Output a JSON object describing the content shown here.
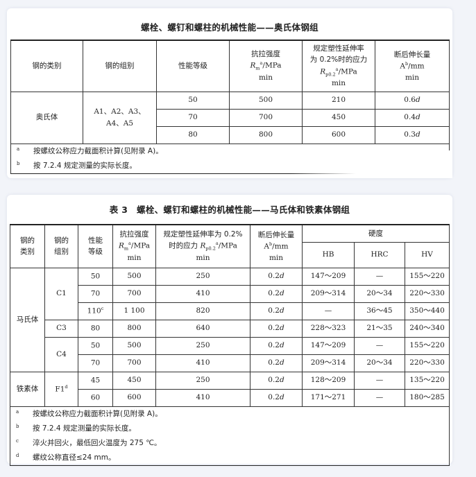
{
  "table1": {
    "title": "螺栓、螺钉和螺柱的机械性能——奥氏体钢组",
    "headers": {
      "category": "钢的类别",
      "group": "钢的组别",
      "grade": "性能等级",
      "tensile": [
        "抗拉强度",
        "R",
        "m",
        "a",
        "/MPa",
        "min"
      ],
      "yield": [
        "规定塑性延伸率",
        "为 0.2%时的应力",
        "R",
        "p0.2",
        "a",
        "/MPa",
        "min"
      ],
      "elong": [
        "断后伸长量",
        "A",
        "b",
        "/mm",
        "min"
      ]
    },
    "category": "奥氏体",
    "group": [
      "A1、A2、A3、",
      "A4、A5"
    ],
    "rows": [
      {
        "grade": "50",
        "tensile": "500",
        "yield": "210",
        "elong": "0.6",
        "unit": "d"
      },
      {
        "grade": "70",
        "tensile": "700",
        "yield": "450",
        "elong": "0.4",
        "unit": "d"
      },
      {
        "grade": "80",
        "tensile": "800",
        "yield": "600",
        "elong": "0.3",
        "unit": "d"
      }
    ],
    "notes": [
      {
        "mark": "a",
        "text": "按螺纹公称应力截面积计算(见附录 A)。"
      },
      {
        "mark": "b",
        "text": "按 7.2.4 规定测量的实际长度。"
      }
    ]
  },
  "table2": {
    "title": "表 3　螺栓、螺钉和螺柱的机械性能——马氏体和铁素体钢组",
    "headers": {
      "category": [
        "钢的",
        "类别"
      ],
      "group": [
        "钢的",
        "组别"
      ],
      "grade": [
        "性能",
        "等级"
      ],
      "tensile": [
        "抗拉强度",
        "R",
        "m",
        "a",
        "/MPa",
        "min"
      ],
      "yield": [
        "规定塑性延伸率为 0.2%",
        "时的应力 ",
        "R",
        "p0.2",
        "a",
        "/MPa",
        "min"
      ],
      "elong": [
        "断后伸长量",
        "A",
        "b",
        "/mm",
        "min"
      ],
      "hardness": "硬度",
      "hb": "HB",
      "hrc": "HRC",
      "hv": "HV"
    },
    "categories": [
      "马氏体",
      "铁素体"
    ],
    "groups": {
      "c1": "C1",
      "c3": "C3",
      "c4": "C4",
      "f1": "F1",
      "f1_mark": "d"
    },
    "rows": [
      {
        "grade": "50",
        "mark": "",
        "tensile": "500",
        "yield": "250",
        "elong": "0.2",
        "unit": "d",
        "hb": "147～209",
        "hrc": "—",
        "hv": "155～220"
      },
      {
        "grade": "70",
        "mark": "",
        "tensile": "700",
        "yield": "410",
        "elong": "0.2",
        "unit": "d",
        "hb": "209～314",
        "hrc": "20～34",
        "hv": "220～330"
      },
      {
        "grade": "110",
        "mark": "c",
        "tensile": "1 100",
        "yield": "820",
        "elong": "0.2",
        "unit": "d",
        "hb": "—",
        "hrc": "36～45",
        "hv": "350～440"
      },
      {
        "grade": "80",
        "mark": "",
        "tensile": "800",
        "yield": "640",
        "elong": "0.2",
        "unit": "d",
        "hb": "228～323",
        "hrc": "21～35",
        "hv": "240～340"
      },
      {
        "grade": "50",
        "mark": "",
        "tensile": "500",
        "yield": "250",
        "elong": "0.2",
        "unit": "d",
        "hb": "147～209",
        "hrc": "—",
        "hv": "155～220"
      },
      {
        "grade": "70",
        "mark": "",
        "tensile": "700",
        "yield": "410",
        "elong": "0.2",
        "unit": "d",
        "hb": "209～314",
        "hrc": "20～34",
        "hv": "220～330"
      },
      {
        "grade": "45",
        "mark": "",
        "tensile": "450",
        "yield": "250",
        "elong": "0.2",
        "unit": "d",
        "hb": "128～209",
        "hrc": "—",
        "hv": "135～220"
      },
      {
        "grade": "60",
        "mark": "",
        "tensile": "600",
        "yield": "410",
        "elong": "0.2",
        "unit": "d",
        "hb": "171～271",
        "hrc": "—",
        "hv": "180～285"
      }
    ],
    "notes": [
      {
        "mark": "a",
        "text": "按螺纹公称应力截面积计算(见附录 A)。"
      },
      {
        "mark": "b",
        "text": "按 7.2.4 规定测量的实际长度。"
      },
      {
        "mark": "c",
        "text": "淬火并回火，最低回火温度为 275 ℃。"
      },
      {
        "mark": "d",
        "text": "螺纹公称直径≤24 mm。"
      }
    ]
  }
}
